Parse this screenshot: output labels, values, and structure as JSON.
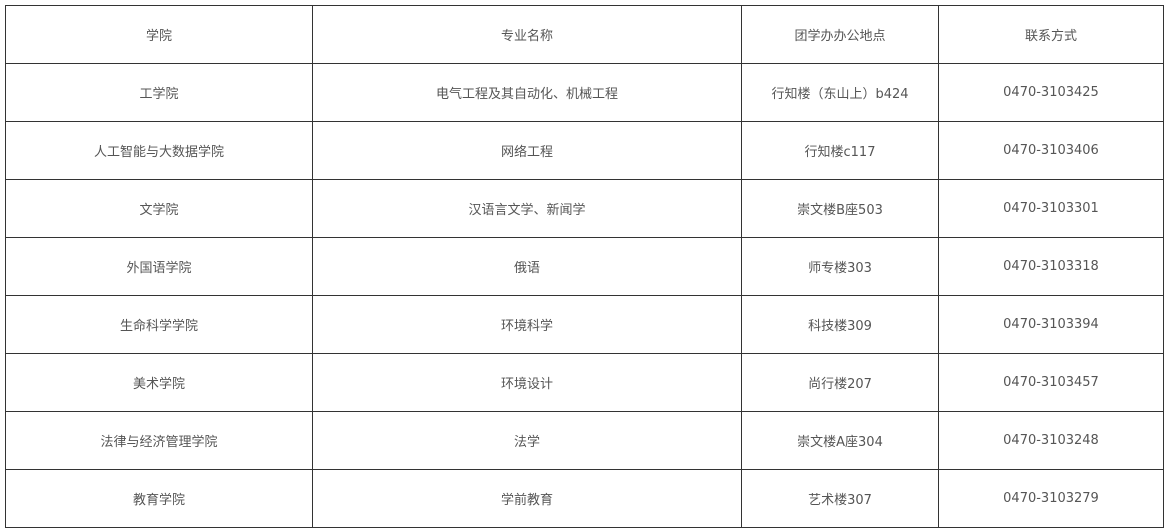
{
  "table": {
    "header": [
      "学院",
      "专业名称",
      "团学办办公地点",
      "联系方式"
    ],
    "rows": [
      [
        "工学院",
        "电气工程及其自动化、机械工程",
        "行知楼（东山上）b424",
        "0470-3103425"
      ],
      [
        "人工智能与大数据学院",
        "网络工程",
        "行知楼c117",
        "0470-3103406"
      ],
      [
        "文学院",
        "汉语言文学、新闻学",
        "崇文楼B座503",
        "0470-3103301"
      ],
      [
        "外国语学院",
        "俄语",
        "师专楼303",
        "0470-3103318"
      ],
      [
        "生命科学学院",
        "环境科学",
        "科技楼309",
        "0470-3103394"
      ],
      [
        "美术学院",
        "环境设计",
        "尚行楼207",
        "0470-3103457"
      ],
      [
        "法律与经济管理学院",
        "法学",
        "崇文楼A座304",
        "0470-3103248"
      ],
      [
        "教育学院",
        "学前教育",
        "艺术楼307",
        "0470-3103279"
      ]
    ]
  }
}
